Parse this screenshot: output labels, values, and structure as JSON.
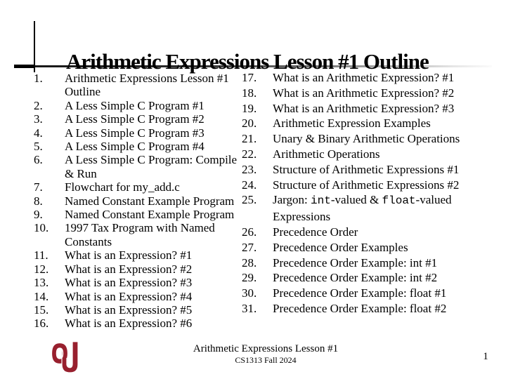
{
  "slide": {
    "title": "Arithmetic Expressions Lesson #1 Outline",
    "footer": {
      "line1": "Arithmetic Expressions Lesson #1",
      "line2": "CS1313 Fall 2024",
      "page_number": "1"
    },
    "logo": {
      "name": "ou-interlocking-logo",
      "color": "#98202e"
    },
    "colors": {
      "text": "#000000",
      "background": "#ffffff",
      "rule": "#000000"
    }
  },
  "outline": {
    "left": [
      {
        "num": "1.",
        "text": "Arithmetic Expressions Lesson #1\nOutline"
      },
      {
        "num": "2.",
        "text": "A Less Simple C Program #1"
      },
      {
        "num": "3.",
        "text": "A Less Simple C Program #2"
      },
      {
        "num": "4.",
        "text": "A Less Simple C Program #3"
      },
      {
        "num": "5.",
        "text": "A Less Simple C Program #4"
      },
      {
        "num": "6.",
        "text": "A Less Simple C Program: Compile\n& Run"
      },
      {
        "num": "7.",
        "text": "Flowchart for my_add.c"
      },
      {
        "num": "8.",
        "text": "Named Constant Example Program"
      },
      {
        "num": "9.",
        "text": "Named Constant Example Program"
      },
      {
        "num": "10.",
        "text": "1997 Tax Program with Named\nConstants"
      },
      {
        "num": "11.",
        "text": "What is an Expression? #1"
      },
      {
        "num": "12.",
        "text": "What is an Expression? #2"
      },
      {
        "num": "13.",
        "text": "What is an Expression? #3"
      },
      {
        "num": "14.",
        "text": "What is an Expression? #4"
      },
      {
        "num": "15.",
        "text": "What is an Expression? #5"
      },
      {
        "num": "16.",
        "text": "What is an Expression? #6"
      }
    ],
    "right": [
      {
        "num": "17.",
        "text": "What is an Arithmetic Expression? #1"
      },
      {
        "num": "18.",
        "text": "What is an Arithmetic Expression? #2"
      },
      {
        "num": "19.",
        "text": "What is an Arithmetic Expression? #3"
      },
      {
        "num": "20.",
        "text": "Arithmetic Expression Examples"
      },
      {
        "num": "21.",
        "text": "Unary & Binary Arithmetic Operations"
      },
      {
        "num": "22.",
        "text": "Arithmetic Operations"
      },
      {
        "num": "23.",
        "text": "Structure of Arithmetic Expressions #1"
      },
      {
        "num": "24.",
        "text": "Structure of Arithmetic Expressions #2"
      },
      {
        "num": "25.",
        "parts": [
          {
            "t": "Jargon: "
          },
          {
            "t": "int",
            "mono": true
          },
          {
            "t": "-valued & "
          },
          {
            "t": "float",
            "mono": true
          },
          {
            "t": "-valued\nExpressions"
          }
        ]
      },
      {
        "num": "26.",
        "text": "Precedence Order"
      },
      {
        "num": "27.",
        "text": "Precedence Order Examples"
      },
      {
        "num": "28.",
        "text": "Precedence Order Example: int #1"
      },
      {
        "num": "29.",
        "text": "Precedence Order Example: int #2"
      },
      {
        "num": "30.",
        "text": "Precedence Order Example: float #1"
      },
      {
        "num": "31.",
        "text": "Precedence Order Example: float #2"
      }
    ]
  }
}
